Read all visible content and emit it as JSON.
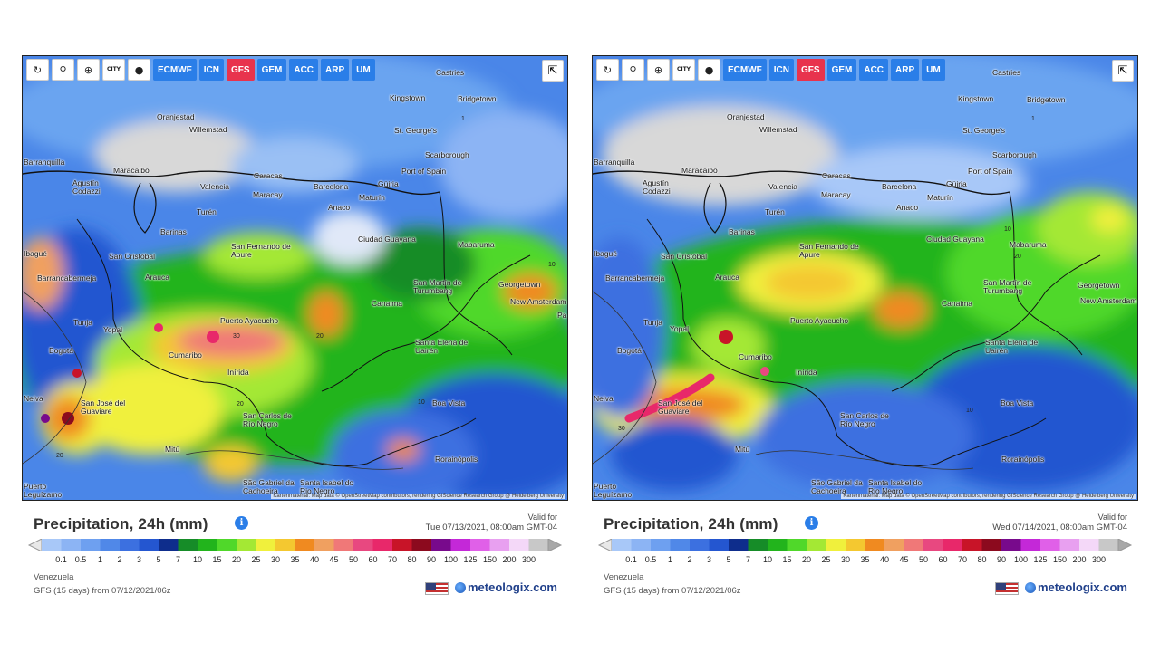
{
  "toolbar": {
    "city_label": "CITY",
    "models": [
      {
        "label": "ECMWF",
        "active": false
      },
      {
        "label": "ICN",
        "active": false
      },
      {
        "label": "GFS",
        "active": true
      },
      {
        "label": "GEM",
        "active": false
      },
      {
        "label": "ACC",
        "active": false
      },
      {
        "label": "ARP",
        "active": false
      },
      {
        "label": "UM",
        "active": false
      }
    ]
  },
  "icons": [
    "refresh-icon",
    "location-pin-icon",
    "zoom-icon",
    "city-toggle-icon",
    "dot-icon",
    "share-icon",
    "info-icon"
  ],
  "attribution": "Kartenmaterial: Map data © OpenStreetMap contributors, rendering GIScience Research Group @ Heidelberg University",
  "cities": [
    "Castries",
    "Kingstown",
    "Bridgetown",
    "Oranjestad",
    "Willemstad",
    "St. George's",
    "Scarborough",
    "Port of Spain",
    "Barranquilla",
    "Maracaibo",
    "Caracas",
    "Valencia",
    "Maracay",
    "Barcelona",
    "Güiria",
    "Maturín",
    "Agustín Codazzi",
    "Anaco",
    "Turén",
    "Barinas",
    "San Fernando de Apure",
    "Ciudad Guayana",
    "Mabaruma",
    "San Cristóbal",
    "Barrancabermeja",
    "Arauca",
    "San Martín de Turumbang",
    "Georgetown",
    "New Amsterdam",
    "Canaima",
    "Tunja",
    "Yopal",
    "Puerto Ayacucho",
    "Bogotá",
    "Cumaribo",
    "Santa Elena de Uairén",
    "Inírida",
    "San José del Guaviare",
    "Boa Vista",
    "San Carlos de Río Negro",
    "Mitú",
    "Rorainópolis",
    "São Gabriel da Cachoeira",
    "Santa Isabel do Rio Negro",
    "Puerto Leguízamo",
    "Ibagué",
    "Neiva",
    "Pa"
  ],
  "contour_labels": [
    "1",
    "10",
    "20",
    "30"
  ],
  "panels": [
    {
      "title": "Precipitation, 24h (mm)",
      "valid_label": "Valid for",
      "valid_date": "Tue 07/13/2021, 08:00am GMT-04",
      "region": "Venezuela",
      "source": "GFS (15 days) from 07/12/2021/06z"
    },
    {
      "title": "Precipitation, 24h (mm)",
      "valid_label": "Valid for",
      "valid_date": "Wed 07/14/2021, 08:00am GMT-04",
      "region": "Venezuela",
      "source": "GFS (15 days) from 07/12/2021/06z"
    }
  ],
  "legend": {
    "ticks": [
      "0.1",
      "0.5",
      "1",
      "2",
      "3",
      "5",
      "7",
      "10",
      "15",
      "20",
      "25",
      "30",
      "35",
      "40",
      "45",
      "50",
      "60",
      "70",
      "80",
      "90",
      "100",
      "125",
      "150",
      "200",
      "300"
    ],
    "colors": [
      "#a8c8f8",
      "#8cb4f4",
      "#6ea0f0",
      "#5088e8",
      "#3c70e0",
      "#2456d0",
      "#0e2d8c",
      "#168c28",
      "#22b41c",
      "#50d82a",
      "#a4e834",
      "#f0f03c",
      "#f4c830",
      "#f08a20",
      "#f0a060",
      "#f07878",
      "#e84880",
      "#e8286a",
      "#c81428",
      "#8c0a1e",
      "#780a8c",
      "#c428d8",
      "#e060e8",
      "#e8a0f0",
      "#f4d8f8",
      "#c8c8c8"
    ]
  },
  "brand": {
    "name": "meteologix.com"
  }
}
